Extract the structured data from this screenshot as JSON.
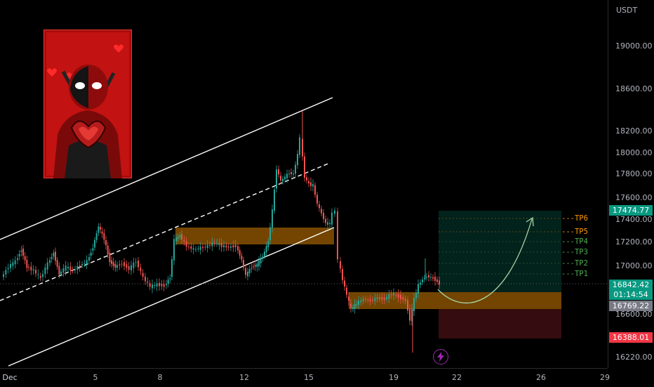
{
  "price_axis": {
    "currency": "USDT",
    "ticks": [
      "19000.00",
      "18600.00",
      "18200.00",
      "18000.00",
      "17800.00",
      "17600.00",
      "17400.00",
      "17200.00",
      "17000.00",
      "16600.00",
      "16220.00"
    ],
    "tick_values": [
      19000,
      18600,
      18200,
      18000,
      17800,
      17600,
      17400,
      17200,
      17000,
      16600,
      16220
    ],
    "target_price": "17474.77",
    "current_price": "16842.42",
    "countdown": "01:14:54",
    "entry_price": "16769.22",
    "stop_price": "16388.01"
  },
  "time_axis": {
    "labels": [
      "Dec",
      "5",
      "8",
      "12",
      "15",
      "19",
      "22",
      "26",
      "29"
    ]
  },
  "take_profits": [
    {
      "label": "---TP6",
      "value": 17400
    },
    {
      "label": "---TP5",
      "value": 17300
    },
    {
      "label": "---TP4",
      "value": 17235
    },
    {
      "label": "---TP3",
      "value": 17150
    },
    {
      "label": "---TP2",
      "value": 17060
    },
    {
      "label": "---TP1",
      "value": 16980
    }
  ],
  "colors": {
    "up": "#26a69a",
    "down": "#ef5350",
    "zone": "#ff9800",
    "profit": "#089981",
    "loss": "#f23645",
    "tp_green": "#4caf50",
    "tp_orange": "#ff9800",
    "channel": "#ffffff",
    "curve": "#a5d6a7",
    "lightning": "#9c27b0"
  },
  "icons": {
    "meme": "deadpool-heart-hands-image",
    "lightning": "lightning-icon"
  }
}
